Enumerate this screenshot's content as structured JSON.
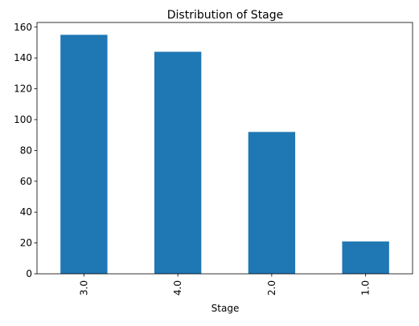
{
  "chart_data": {
    "type": "bar",
    "title": "Distribution of Stage",
    "xlabel": "Stage",
    "ylabel": "",
    "categories": [
      "3.0",
      "4.0",
      "2.0",
      "1.0"
    ],
    "values": [
      155,
      144,
      92,
      21
    ],
    "ylim": [
      0,
      163
    ],
    "yticks": [
      0,
      20,
      40,
      60,
      80,
      100,
      120,
      140,
      160
    ],
    "grid": false,
    "bar_color": "#1f77b4"
  }
}
